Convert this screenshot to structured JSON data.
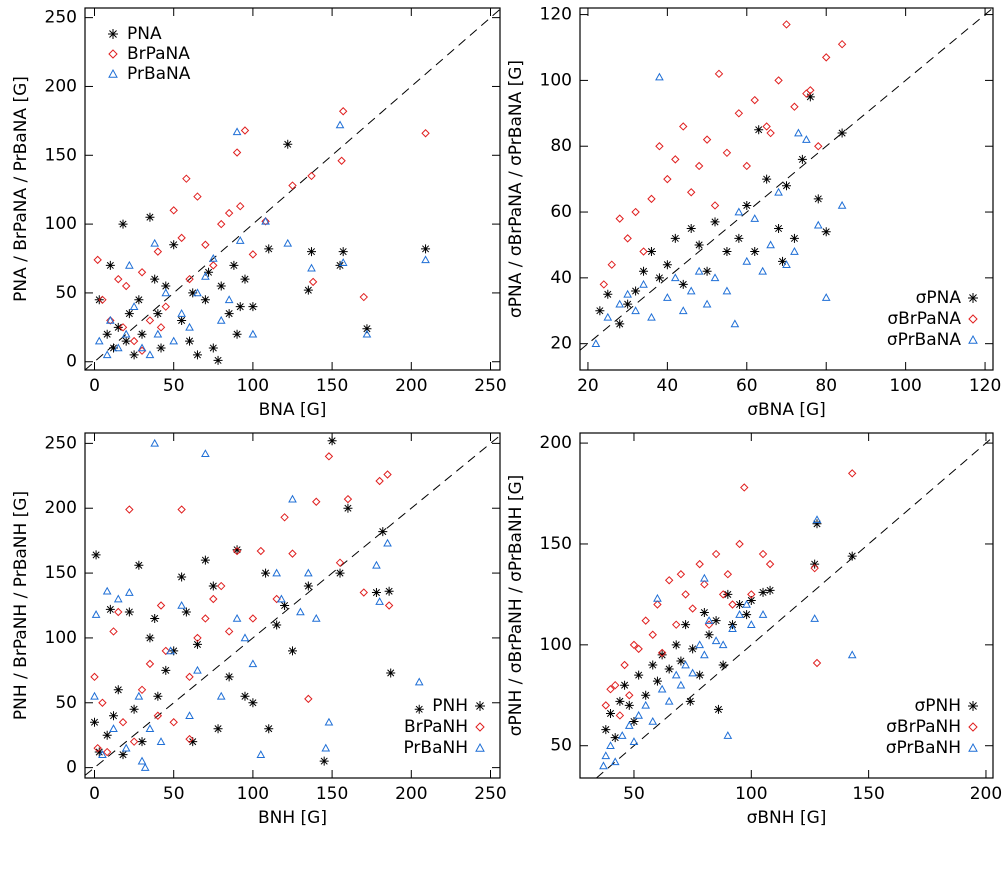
{
  "chart_data": [
    {
      "type": "scatter",
      "x_label": "BNA [G]",
      "y_label": "PNA / BrPaNA / PrBaNA [G]",
      "xlim": [
        -6,
        256
      ],
      "ylim": [
        -6,
        257
      ],
      "xticks": [
        0,
        50,
        100,
        150,
        200,
        250
      ],
      "yticks": [
        0,
        50,
        100,
        150,
        200,
        250
      ],
      "legend": "upper left",
      "diagonal": true,
      "series": [
        {
          "name": "PNA",
          "color": "#000000",
          "marker": "asterisk",
          "x": [
            3,
            8,
            10,
            12,
            15,
            18,
            20,
            22,
            25,
            28,
            30,
            35,
            38,
            40,
            42,
            45,
            50,
            55,
            60,
            62,
            65,
            70,
            72,
            75,
            80,
            85,
            88,
            90,
            92,
            95,
            100,
            110,
            122,
            135,
            137,
            155,
            157,
            172,
            209,
            78
          ],
          "values": [
            45,
            20,
            70,
            10,
            25,
            100,
            15,
            35,
            5,
            45,
            20,
            105,
            60,
            35,
            10,
            55,
            85,
            30,
            15,
            50,
            5,
            45,
            65,
            10,
            55,
            35,
            70,
            20,
            40,
            60,
            40,
            82,
            158,
            52,
            80,
            70,
            80,
            24,
            82,
            1
          ]
        },
        {
          "name": "BrPaNA",
          "color": "#e02020",
          "marker": "diamond",
          "x": [
            2,
            5,
            10,
            15,
            18,
            20,
            25,
            30,
            35,
            40,
            42,
            45,
            50,
            55,
            58,
            60,
            65,
            70,
            75,
            80,
            85,
            90,
            92,
            95,
            100,
            108,
            125,
            137,
            138,
            156,
            157,
            170,
            209,
            30
          ],
          "values": [
            74,
            45,
            30,
            60,
            25,
            55,
            15,
            65,
            30,
            80,
            25,
            40,
            110,
            90,
            133,
            60,
            120,
            85,
            70,
            100,
            108,
            152,
            113,
            168,
            78,
            102,
            128,
            135,
            58,
            146,
            182,
            47,
            166,
            8
          ]
        },
        {
          "name": "PrBaNA",
          "color": "#1f6fd6",
          "marker": "triangle",
          "x": [
            3,
            8,
            10,
            15,
            20,
            22,
            25,
            30,
            35,
            38,
            40,
            45,
            50,
            55,
            60,
            65,
            70,
            75,
            80,
            85,
            90,
            92,
            100,
            108,
            122,
            137,
            155,
            157,
            172,
            209
          ],
          "values": [
            15,
            5,
            30,
            10,
            20,
            70,
            40,
            10,
            5,
            86,
            20,
            50,
            15,
            35,
            25,
            50,
            62,
            75,
            30,
            45,
            167,
            88,
            20,
            102,
            86,
            68,
            172,
            72,
            20,
            74
          ]
        }
      ]
    },
    {
      "type": "scatter",
      "x_label": "σBNA [G]",
      "y_label": "σPNA / σBrPaNA / σPrBaNA [G]",
      "xlim": [
        18,
        122
      ],
      "ylim": [
        12,
        122
      ],
      "xticks": [
        20,
        40,
        60,
        80,
        100,
        120
      ],
      "yticks": [
        20,
        40,
        60,
        80,
        100,
        120
      ],
      "legend": "lower right",
      "diagonal": true,
      "series": [
        {
          "name": "σPNA",
          "color": "#000000",
          "marker": "asterisk",
          "x": [
            23,
            25,
            28,
            30,
            32,
            34,
            36,
            38,
            40,
            42,
            44,
            46,
            48,
            50,
            52,
            55,
            58,
            60,
            62,
            65,
            68,
            70,
            72,
            74,
            76,
            78,
            80,
            84,
            63,
            69
          ],
          "values": [
            30,
            35,
            26,
            32,
            36,
            42,
            48,
            40,
            44,
            52,
            38,
            55,
            50,
            42,
            57,
            48,
            52,
            62,
            48,
            70,
            55,
            68,
            52,
            76,
            95,
            64,
            54,
            84,
            85,
            45
          ]
        },
        {
          "name": "σBrPaNA",
          "color": "#e02020",
          "marker": "diamond",
          "x": [
            24,
            26,
            28,
            30,
            32,
            34,
            36,
            38,
            40,
            42,
            44,
            46,
            48,
            50,
            52,
            55,
            58,
            60,
            62,
            65,
            68,
            70,
            72,
            75,
            78,
            80,
            84,
            53,
            66,
            76
          ],
          "values": [
            38,
            44,
            58,
            52,
            60,
            48,
            64,
            80,
            70,
            76,
            86,
            66,
            74,
            82,
            62,
            78,
            90,
            74,
            94,
            86,
            100,
            117,
            92,
            96,
            80,
            107,
            111,
            102,
            84,
            97
          ]
        },
        {
          "name": "σPrBaNA",
          "color": "#1f6fd6",
          "marker": "triangle",
          "x": [
            22,
            25,
            28,
            30,
            32,
            34,
            36,
            38,
            40,
            42,
            44,
            46,
            48,
            50,
            52,
            55,
            57,
            60,
            62,
            64,
            66,
            68,
            70,
            72,
            75,
            78,
            80,
            84,
            73,
            58
          ],
          "values": [
            20,
            28,
            32,
            35,
            30,
            38,
            28,
            101,
            34,
            40,
            30,
            36,
            42,
            32,
            40,
            36,
            26,
            45,
            58,
            42,
            50,
            66,
            44,
            48,
            82,
            56,
            34,
            62,
            84,
            60
          ]
        }
      ]
    },
    {
      "type": "scatter",
      "x_label": "BNH [G]",
      "y_label": "PNH / BrPaNH / PrBaNH [G]",
      "xlim": [
        -6,
        256
      ],
      "ylim": [
        -8,
        258
      ],
      "xticks": [
        0,
        50,
        100,
        150,
        200,
        250
      ],
      "yticks": [
        0,
        50,
        100,
        150,
        200,
        250
      ],
      "legend": "lower right",
      "diagonal": true,
      "series": [
        {
          "name": "PNH",
          "color": "#000000",
          "marker": "asterisk",
          "x": [
            0,
            1,
            3,
            8,
            10,
            12,
            15,
            18,
            22,
            25,
            28,
            30,
            35,
            38,
            40,
            45,
            50,
            55,
            58,
            62,
            65,
            70,
            75,
            78,
            85,
            90,
            95,
            100,
            108,
            110,
            115,
            120,
            125,
            135,
            145,
            150,
            155,
            160,
            178,
            182,
            186,
            187,
            205
          ],
          "values": [
            35,
            164,
            12,
            25,
            122,
            40,
            60,
            10,
            120,
            45,
            156,
            20,
            100,
            115,
            55,
            75,
            90,
            147,
            120,
            20,
            95,
            160,
            140,
            30,
            70,
            168,
            55,
            50,
            150,
            30,
            110,
            125,
            90,
            140,
            5,
            252,
            150,
            200,
            135,
            182,
            136,
            73,
            45
          ]
        },
        {
          "name": "BrPaNH",
          "color": "#e02020",
          "marker": "diamond",
          "x": [
            0,
            2,
            5,
            8,
            12,
            15,
            18,
            22,
            25,
            30,
            35,
            40,
            42,
            45,
            50,
            55,
            60,
            65,
            70,
            75,
            80,
            85,
            90,
            100,
            105,
            115,
            120,
            125,
            135,
            140,
            148,
            155,
            160,
            170,
            180,
            185,
            186,
            60
          ],
          "values": [
            70,
            15,
            50,
            12,
            105,
            120,
            35,
            199,
            20,
            60,
            80,
            40,
            125,
            90,
            35,
            199,
            70,
            100,
            115,
            130,
            140,
            105,
            167,
            115,
            167,
            130,
            193,
            165,
            53,
            205,
            240,
            158,
            207,
            135,
            221,
            226,
            125,
            22
          ]
        },
        {
          "name": "PrBaNH",
          "color": "#1f6fd6",
          "marker": "triangle",
          "x": [
            0,
            1,
            5,
            8,
            12,
            15,
            20,
            22,
            28,
            30,
            32,
            35,
            38,
            42,
            48,
            55,
            60,
            65,
            70,
            80,
            90,
            95,
            100,
            105,
            115,
            118,
            125,
            130,
            135,
            140,
            146,
            148,
            178,
            180,
            185,
            205
          ],
          "values": [
            55,
            118,
            10,
            136,
            30,
            130,
            15,
            135,
            55,
            5,
            0,
            30,
            250,
            20,
            90,
            125,
            40,
            75,
            242,
            55,
            115,
            100,
            80,
            10,
            150,
            130,
            207,
            120,
            150,
            115,
            15,
            35,
            156,
            128,
            173,
            66
          ]
        }
      ]
    },
    {
      "type": "scatter",
      "x_label": "σBNH [G]",
      "y_label": "σPNH / σBrPaNH / σPrBaNH [G]",
      "xlim": [
        27,
        203
      ],
      "ylim": [
        34,
        205
      ],
      "xticks": [
        50,
        100,
        150,
        200
      ],
      "yticks": [
        50,
        100,
        150,
        200
      ],
      "legend": "lower right",
      "diagonal": true,
      "series": [
        {
          "name": "σPNH",
          "color": "#000000",
          "marker": "asterisk",
          "x": [
            38,
            40,
            42,
            44,
            46,
            48,
            50,
            52,
            55,
            58,
            60,
            62,
            65,
            68,
            70,
            72,
            75,
            78,
            80,
            82,
            85,
            88,
            90,
            92,
            95,
            98,
            100,
            105,
            108,
            127,
            128,
            143,
            74,
            86
          ],
          "values": [
            58,
            66,
            54,
            72,
            80,
            70,
            62,
            85,
            75,
            90,
            82,
            95,
            88,
            100,
            92,
            110,
            98,
            85,
            116,
            105,
            112,
            90,
            125,
            110,
            120,
            115,
            122,
            126,
            127,
            140,
            160,
            144,
            72,
            68
          ]
        },
        {
          "name": "σBrPaNH",
          "color": "#e02020",
          "marker": "diamond",
          "x": [
            38,
            40,
            42,
            44,
            46,
            48,
            50,
            52,
            55,
            58,
            60,
            62,
            65,
            68,
            70,
            72,
            75,
            78,
            80,
            82,
            85,
            88,
            90,
            92,
            95,
            97,
            100,
            105,
            108,
            127,
            128,
            143
          ],
          "values": [
            70,
            78,
            80,
            65,
            90,
            75,
            100,
            98,
            112,
            105,
            120,
            96,
            132,
            110,
            135,
            125,
            118,
            140,
            130,
            110,
            145,
            125,
            135,
            120,
            150,
            178,
            125,
            145,
            140,
            138,
            91,
            185
          ]
        },
        {
          "name": "σPrBaNH",
          "color": "#1f6fd6",
          "marker": "triangle",
          "x": [
            37,
            38,
            40,
            42,
            45,
            48,
            50,
            52,
            55,
            58,
            60,
            62,
            65,
            68,
            70,
            72,
            75,
            78,
            80,
            82,
            85,
            88,
            90,
            92,
            95,
            98,
            100,
            105,
            127,
            128,
            143,
            80
          ],
          "values": [
            40,
            45,
            50,
            42,
            55,
            60,
            52,
            65,
            70,
            62,
            123,
            78,
            72,
            85,
            80,
            90,
            86,
            100,
            95,
            112,
            102,
            100,
            55,
            108,
            115,
            120,
            110,
            115,
            113,
            162,
            95,
            133
          ]
        }
      ]
    }
  ]
}
